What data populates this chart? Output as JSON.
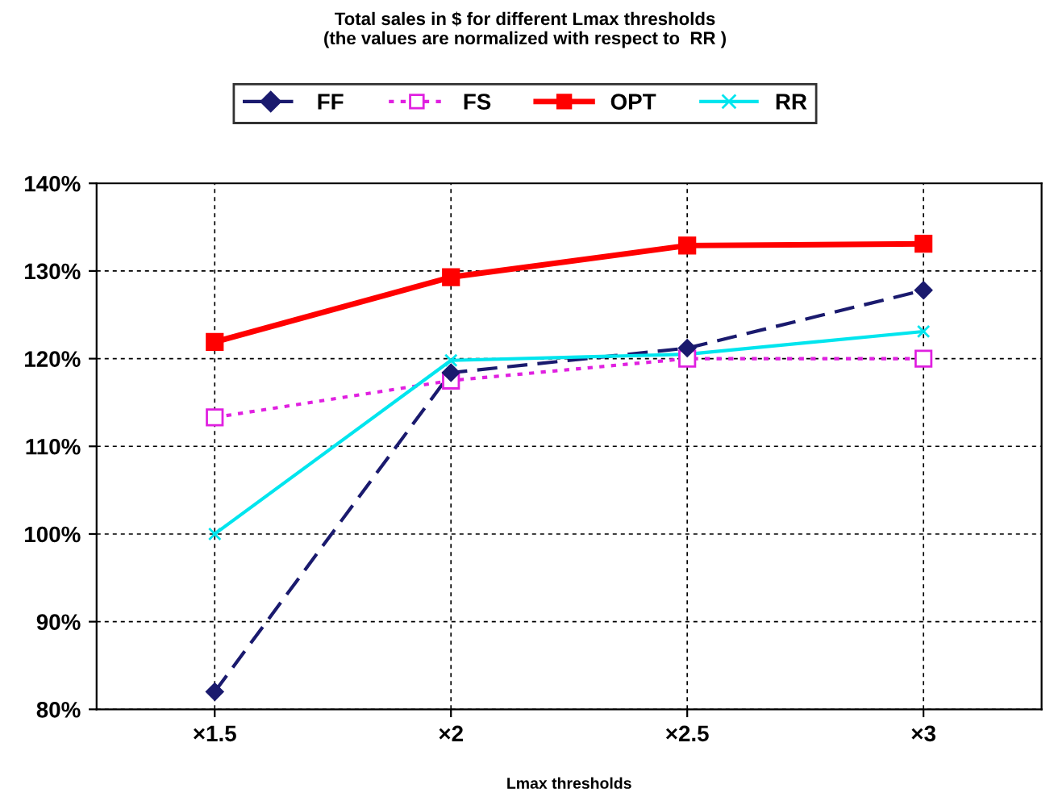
{
  "chart_data": {
    "type": "line",
    "title": "Total sales in $ for different Lmax thresholds\n(the values are normalized with respect to  RR )",
    "xlabel": "Lmax thresholds",
    "categories": [
      "×1.5",
      "×2",
      "×2.5",
      "×3"
    ],
    "ylim": [
      80,
      140
    ],
    "yticks": [
      {
        "value": 80,
        "label": "80%"
      },
      {
        "value": 90,
        "label": "90%"
      },
      {
        "value": 100,
        "label": "100%"
      },
      {
        "value": 110,
        "label": "110%"
      },
      {
        "value": 120,
        "label": "120%"
      },
      {
        "value": 130,
        "label": "130%"
      },
      {
        "value": 140,
        "label": "140%"
      }
    ],
    "grid": true,
    "legend": "top",
    "series": [
      {
        "name": "FF",
        "color": "#1a1a6e",
        "values": [
          82,
          118.4,
          121.2,
          127.8
        ],
        "marker": "diamond",
        "line_style": "dashed"
      },
      {
        "name": "FS",
        "color": "#e020e0",
        "values": [
          113.3,
          117.5,
          120,
          120
        ],
        "marker": "square_open",
        "line_style": "dotted"
      },
      {
        "name": "OPT",
        "color": "#ff0000",
        "values": [
          121.9,
          129.3,
          132.9,
          133.1
        ],
        "marker": "square",
        "line_style": "solid"
      },
      {
        "name": "RR",
        "color": "#00e5ee",
        "values": [
          100,
          119.8,
          120.5,
          123.1
        ],
        "marker": "cross",
        "line_style": "solid"
      }
    ]
  }
}
